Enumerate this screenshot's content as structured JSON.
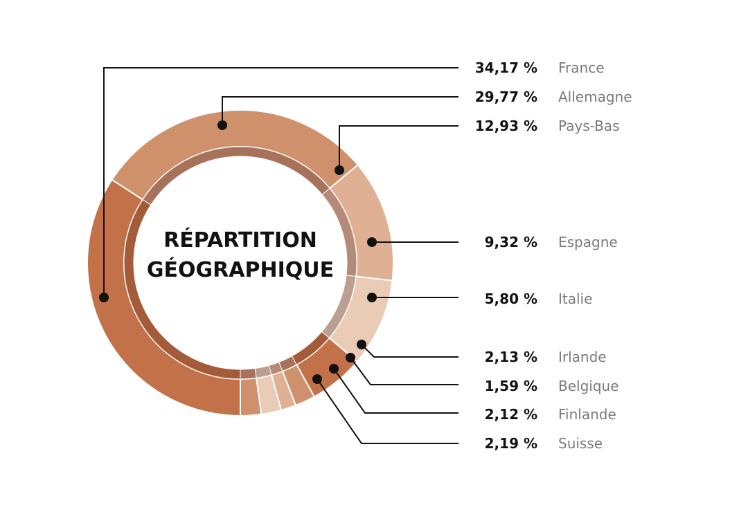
{
  "chart_data": {
    "type": "pie",
    "variant": "donut",
    "title_lines": [
      "RÉPARTITION",
      "GÉOGRAPHIQUE"
    ],
    "slices": [
      {
        "label": "France",
        "value": 34.17,
        "value_label": "34,17 %",
        "color": "#c37149",
        "inner_color": "#a45b3a"
      },
      {
        "label": "Allemagne",
        "value": 29.77,
        "value_label": "29,77 %",
        "color": "#cf916c",
        "inner_color": "#a8715a"
      },
      {
        "label": "Pays-Bas",
        "value": 12.93,
        "value_label": "12,93 %",
        "color": "#e0b095",
        "inner_color": "#b48b78"
      },
      {
        "label": "Espagne",
        "value": 9.32,
        "value_label": "9,32 %",
        "color": "#eacbb5",
        "inner_color": "#bba091"
      },
      {
        "label": "Italie",
        "value": 5.8,
        "value_label": "5,80 %",
        "color": "#c37149",
        "inner_color": "#a45b3a"
      },
      {
        "label": "Irlande",
        "value": 2.13,
        "value_label": "2,13 %",
        "color": "#cf916c",
        "inner_color": "#a8715a"
      },
      {
        "label": "Belgique",
        "value": 1.59,
        "value_label": "1,59 %",
        "color": "#e0b095",
        "inner_color": "#b48b78"
      },
      {
        "label": "Finlande",
        "value": 2.12,
        "value_label": "2,12 %",
        "color": "#eacbb5",
        "inner_color": "#bba091"
      },
      {
        "label": "Suisse",
        "value": 2.19,
        "value_label": "2,19 %",
        "color": "#cf916c",
        "inner_color": "#a8715a"
      }
    ]
  }
}
